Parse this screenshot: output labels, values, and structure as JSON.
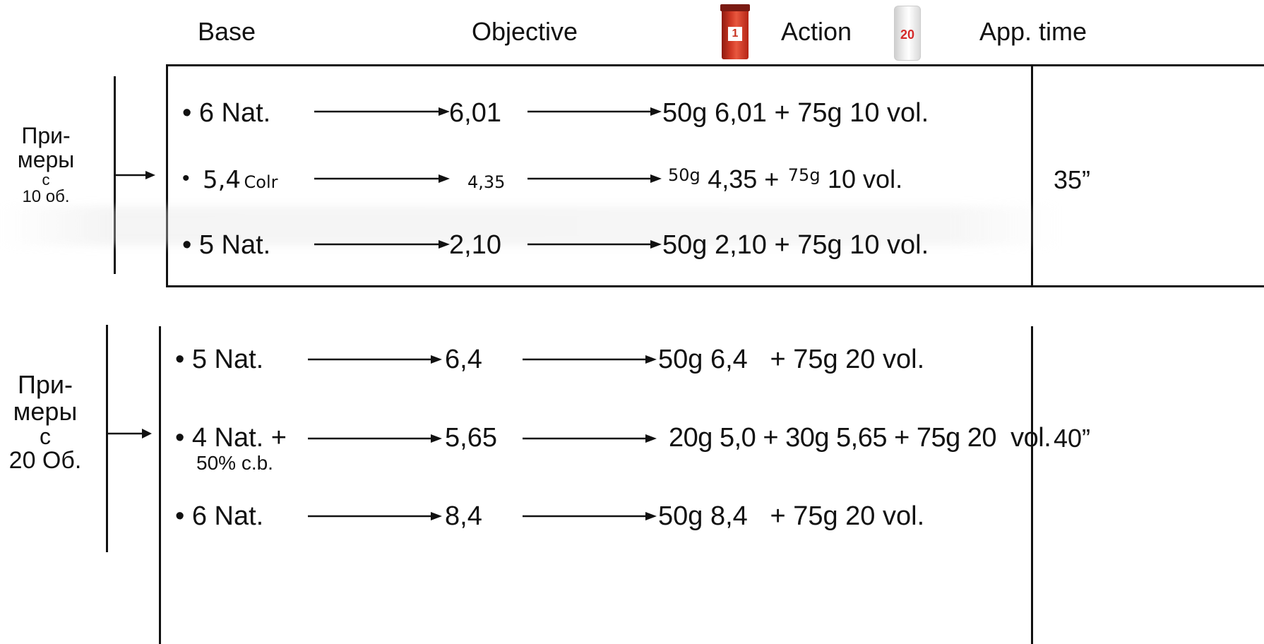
{
  "header": {
    "base": "Base",
    "objective": "Objective",
    "action": "Action",
    "app_time": "App. time",
    "tube1_label": "1",
    "tube2_label": "20"
  },
  "colors": {
    "ink": "#111111",
    "tube1": "#c8311f",
    "tube2_label": "#d52a2a"
  },
  "icons": [
    "red-color-tube-icon",
    "developer-bottle-icon",
    "arrow-right-icon"
  ],
  "group1": {
    "label_line1": "При-",
    "label_line2": "меры",
    "label_line3": "с",
    "label_line4": "10 об.",
    "time": "35”",
    "rows": [
      {
        "base": "• 6 Nat.",
        "objective": "6,01",
        "action": "50g 6,01 + 75g 10 vol."
      },
      {
        "base_bullet": "•",
        "base_main": "5,4",
        "base_suffix": "Colr",
        "objective": "4,35",
        "action_a": "50g",
        "action_b": "4,35 +",
        "action_c": "75g",
        "action_d": "10 vol."
      },
      {
        "base": "• 5 Nat.",
        "objective": "2,10",
        "action": "50g 2,10 + 75g 10 vol."
      }
    ]
  },
  "group2": {
    "label_line1": "При-",
    "label_line2": "меры",
    "label_line3": "с",
    "label_line4": "20 Об.",
    "time": "40”",
    "rows": [
      {
        "base": "• 5 Nat.",
        "objective": "6,4",
        "action": "50g 6,4   + 75g 20 vol."
      },
      {
        "base": "• 4 Nat. +",
        "base_sub": "50% c.b.",
        "objective": "5,65",
        "action": "20g 5,0 + 30g 5,65 + 75g 20  vol."
      },
      {
        "base": "• 6 Nat.",
        "objective": "8,4",
        "action": "50g 8,4   + 75g 20 vol."
      }
    ]
  }
}
